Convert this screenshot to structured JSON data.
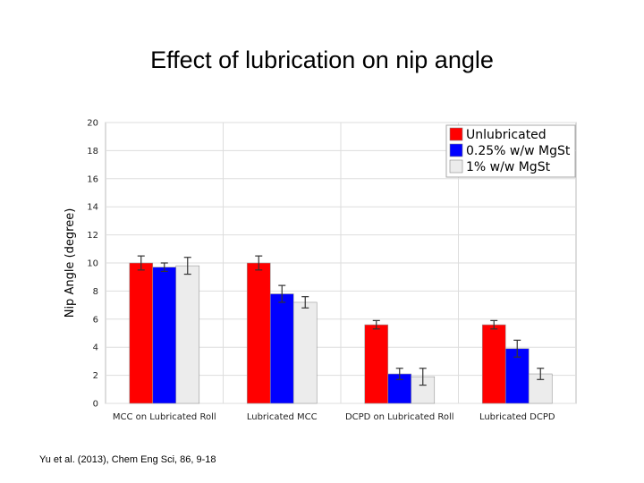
{
  "slide": {
    "title": "Effect of lubrication on nip angle",
    "citation": "Yu et al. (2013), Chem Eng Sci, 86, 9-18"
  },
  "chart_data": {
    "type": "bar",
    "title": "Effect of lubrication on nip angle",
    "xlabel": "",
    "ylabel": "Nip Angle (degree)",
    "ylim": [
      0,
      20
    ],
    "yticks": [
      0,
      2,
      4,
      6,
      8,
      10,
      12,
      14,
      16,
      18,
      20
    ],
    "grid": true,
    "legend_position": "top-right",
    "categories": [
      "MCC on Lubricated Roll",
      "Lubricated MCC",
      "DCPD on Lubricated Roll",
      "Lubricated DCPD"
    ],
    "series": [
      {
        "name": "Unlubricated",
        "color": "#ff0000",
        "values": [
          10.0,
          10.0,
          5.6,
          5.6
        ],
        "errors": [
          0.5,
          0.5,
          0.3,
          0.3
        ]
      },
      {
        "name": "0.25% w/w MgSt",
        "color": "#0000ff",
        "values": [
          9.7,
          7.8,
          2.1,
          3.9
        ],
        "errors": [
          0.3,
          0.6,
          0.4,
          0.6
        ]
      },
      {
        "name": "1% w/w MgSt",
        "color": "#ececec",
        "values": [
          9.8,
          7.2,
          1.9,
          2.1
        ],
        "errors": [
          0.6,
          0.4,
          0.6,
          0.4
        ]
      }
    ]
  }
}
